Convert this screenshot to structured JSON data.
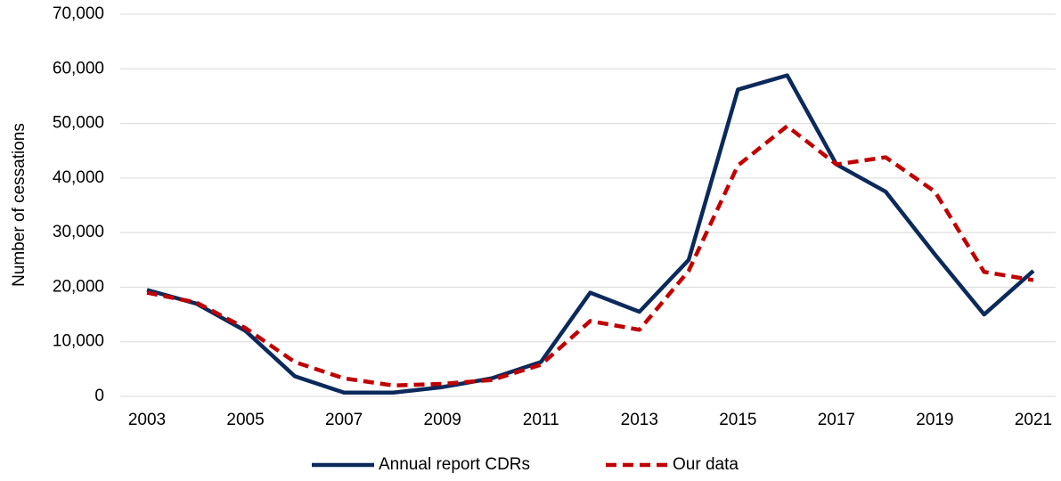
{
  "chart_data": {
    "type": "line",
    "y_label": "Number of cessations",
    "x": [
      2003,
      2004,
      2005,
      2006,
      2007,
      2008,
      2009,
      2010,
      2011,
      2012,
      2013,
      2014,
      2015,
      2016,
      2017,
      2018,
      2019,
      2020,
      2021
    ],
    "series": [
      {
        "name": "Annual report CDRs",
        "color": "#0b2a5b",
        "dash": "solid",
        "values": [
          19500,
          17000,
          12000,
          3700,
          700,
          700,
          1700,
          3300,
          6300,
          19000,
          15500,
          25000,
          56200,
          58800,
          42500,
          37500,
          26000,
          15000,
          23000
        ]
      },
      {
        "name": "Our data",
        "color": "#c00000",
        "dash": "dashed",
        "values": [
          19000,
          17200,
          12500,
          6300,
          3300,
          2000,
          2300,
          3000,
          5800,
          13800,
          12200,
          23000,
          42300,
          49500,
          42500,
          43800,
          37500,
          22800,
          21300
        ]
      }
    ],
    "xlim": [
      2003,
      2021
    ],
    "xticks": [
      2003,
      2005,
      2007,
      2009,
      2011,
      2013,
      2015,
      2017,
      2019,
      2021
    ],
    "ylim": [
      0,
      70000
    ],
    "yticks": [
      0,
      {
        "value": 10000,
        "label": "10,000"
      },
      {
        "value": 20000,
        "label": "20,000"
      },
      {
        "value": 30000,
        "label": "30,000"
      },
      {
        "value": 40000,
        "label": "40,000"
      },
      {
        "value": 50000,
        "label": "50,000"
      },
      {
        "value": 60000,
        "label": "60,000"
      },
      {
        "value": 70000,
        "label": "70,000"
      }
    ],
    "grid": true,
    "legend": "bottom"
  }
}
